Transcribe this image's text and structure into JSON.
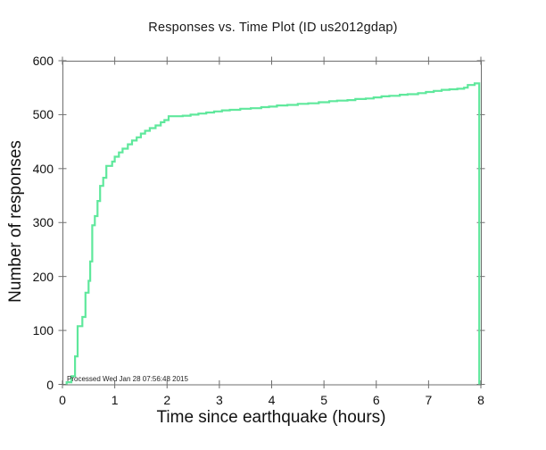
{
  "title": "Responses vs. Time Plot (ID us2012gdap)",
  "chart_data": {
    "type": "line",
    "subtype": "step-cumulative",
    "title": "Responses vs. Time Plot (ID us2012gdap)",
    "xlabel": "Time since earthquake (hours)",
    "ylabel": "Number of responses",
    "annotation": "Processed Wed Jan 28 07:56:48 2015",
    "xlim": [
      0,
      8
    ],
    "ylim": [
      0,
      600
    ],
    "x_ticks": [
      0,
      1,
      2,
      3,
      4,
      5,
      6,
      7,
      8
    ],
    "y_ticks": [
      0,
      100,
      200,
      300,
      400,
      500,
      600
    ],
    "grid": false,
    "legend": "none",
    "line_color": "#5fe89c",
    "axis_color": "#6e6e6e",
    "series": [
      {
        "name": "cumulative-responses",
        "points": [
          [
            0.08,
            4
          ],
          [
            0.17,
            15
          ],
          [
            0.24,
            52
          ],
          [
            0.29,
            108
          ],
          [
            0.38,
            125
          ],
          [
            0.44,
            170
          ],
          [
            0.5,
            192
          ],
          [
            0.53,
            228
          ],
          [
            0.57,
            295
          ],
          [
            0.62,
            312
          ],
          [
            0.67,
            340
          ],
          [
            0.72,
            368
          ],
          [
            0.78,
            383
          ],
          [
            0.84,
            405
          ],
          [
            0.95,
            413
          ],
          [
            1.0,
            422
          ],
          [
            1.08,
            430
          ],
          [
            1.15,
            437
          ],
          [
            1.25,
            445
          ],
          [
            1.33,
            452
          ],
          [
            1.42,
            458
          ],
          [
            1.5,
            465
          ],
          [
            1.58,
            470
          ],
          [
            1.67,
            475
          ],
          [
            1.78,
            480
          ],
          [
            1.88,
            486
          ],
          [
            1.95,
            490
          ],
          [
            2.03,
            497
          ],
          [
            2.3,
            498
          ],
          [
            2.45,
            500
          ],
          [
            2.6,
            502
          ],
          [
            2.75,
            504
          ],
          [
            2.9,
            506
          ],
          [
            3.05,
            508
          ],
          [
            3.2,
            509
          ],
          [
            3.4,
            511
          ],
          [
            3.6,
            512
          ],
          [
            3.8,
            514
          ],
          [
            3.95,
            515
          ],
          [
            4.1,
            517
          ],
          [
            4.3,
            518
          ],
          [
            4.5,
            520
          ],
          [
            4.7,
            521
          ],
          [
            4.9,
            523
          ],
          [
            5.1,
            525
          ],
          [
            5.25,
            526
          ],
          [
            5.45,
            527
          ],
          [
            5.6,
            529
          ],
          [
            5.8,
            530
          ],
          [
            5.95,
            532
          ],
          [
            6.1,
            534
          ],
          [
            6.25,
            535
          ],
          [
            6.45,
            537
          ],
          [
            6.6,
            538
          ],
          [
            6.8,
            540
          ],
          [
            6.95,
            542
          ],
          [
            7.1,
            544
          ],
          [
            7.25,
            546
          ],
          [
            7.4,
            547
          ],
          [
            7.55,
            548
          ],
          [
            7.68,
            550
          ],
          [
            7.75,
            555
          ],
          [
            7.88,
            558
          ],
          [
            7.97,
            0
          ]
        ]
      }
    ]
  }
}
